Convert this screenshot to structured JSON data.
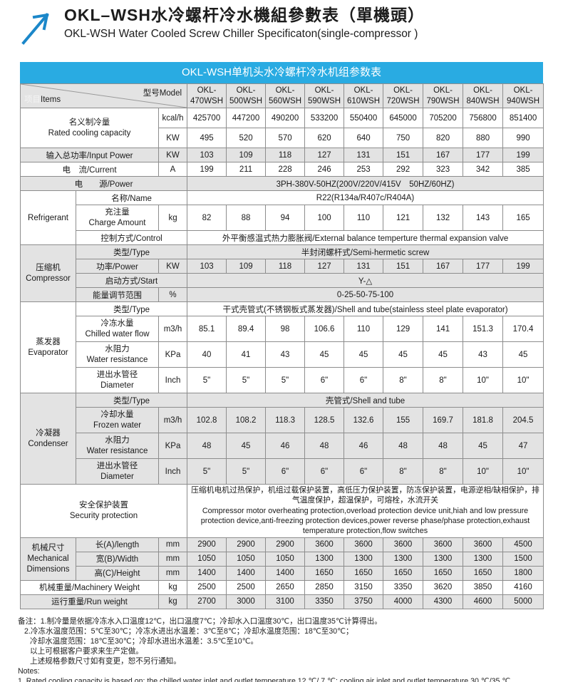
{
  "header": {
    "title_cn": "OKL–WSH水冷螺杆冷水機組參數表（單機頭）",
    "title_en": "OKL-WSH Water Cooled Screw Chiller Specificaton(single-compressor )"
  },
  "banner": {
    "text": "OKL-WSH单机头水冷螺杆冷水机组参数表",
    "bg": "#29abe2"
  },
  "table": {
    "corner": {
      "items_cn": "项目",
      "items_en": "Items",
      "model_label": "型号Model"
    },
    "models": [
      "OKL-470WSH",
      "OKL-500WSH",
      "OKL-560WSH",
      "OKL-590WSH",
      "OKL-610WSH",
      "OKL-720WSH",
      "OKL-790WSH",
      "OKL-840WSH",
      "OKL-940WSH"
    ],
    "rated_cooling": {
      "label_cn": "名义制冷量",
      "label_en": "Rated cooling capacity",
      "kcal": {
        "unit": "kcal/h",
        "values": [
          425700,
          447200,
          490200,
          533200,
          550400,
          645000,
          705200,
          756800,
          851400
        ]
      },
      "kw": {
        "unit": "KW",
        "values": [
          495,
          520,
          570,
          620,
          640,
          750,
          820,
          880,
          990
        ]
      }
    },
    "input_power": {
      "label": "输入总功率/Input Power",
      "unit": "KW",
      "values": [
        103,
        109,
        118,
        127,
        131,
        151,
        167,
        177,
        199
      ]
    },
    "current": {
      "label": "电　流/Current",
      "unit": "A",
      "values": [
        199,
        211,
        228,
        246,
        253,
        292,
        323,
        342,
        385
      ]
    },
    "power_supply": {
      "label": "电　　源/Power",
      "value": "3PH-380V-50HZ(200V/220V/415V　50HZ/60HZ)"
    },
    "refrigerant": {
      "section": "Refrigerant",
      "name": {
        "label": "名称/Name",
        "value": "R22(R134a/R407c/R404A)"
      },
      "charge": {
        "label_cn": "充注量",
        "label_en": "Charge Amount",
        "unit": "kg",
        "values": [
          82,
          88,
          94,
          100,
          110,
          121,
          132,
          143,
          165
        ]
      },
      "control": {
        "label": "控制方式/Control",
        "value": "外平衡感温式热力膨胀阀/External balance temperture thermal expansion valve"
      }
    },
    "compressor": {
      "section_cn": "压缩机",
      "section_en": "Compressor",
      "type": {
        "label": "类型/Type",
        "value": "半封闭螺杆式/Semi-hermetic screw"
      },
      "power": {
        "label": "功率/Power",
        "unit": "KW",
        "values": [
          103,
          109,
          118,
          127,
          131,
          151,
          167,
          177,
          199
        ]
      },
      "start": {
        "label": "启动方式/Start",
        "value": "Y-△"
      },
      "energy": {
        "label": "能量调节范围",
        "unit": "%",
        "value": "0-25-50-75-100"
      }
    },
    "evaporator": {
      "section_cn": "蒸发器",
      "section_en": "Evaporator",
      "type": {
        "label": "类型/Type",
        "value": "干式壳管式(不锈钢板式蒸发器)/Shell and tube(stainless steel plate evaporator)"
      },
      "flow": {
        "label_cn": "冷冻水量",
        "label_en": "Chilled water flow",
        "unit": "m3/h",
        "values": [
          85.1,
          89.4,
          98,
          106.6,
          110,
          129,
          141,
          151.3,
          170.4
        ]
      },
      "resistance": {
        "label_cn": "水阻力",
        "label_en": "Water resistance",
        "unit": "KPa",
        "values": [
          40,
          41,
          43,
          45,
          45,
          45,
          45,
          43,
          45
        ]
      },
      "diameter": {
        "label_cn": "进出水管径",
        "label_en": "Diameter",
        "unit": "Inch",
        "values": [
          "5\"",
          "5\"",
          "5\"",
          "6\"",
          "6\"",
          "8\"",
          "8\"",
          "10\"",
          "10\""
        ]
      }
    },
    "condenser": {
      "section_cn": "冷凝器",
      "section_en": "Condenser",
      "type": {
        "label": "类型/Type",
        "value": "壳管式/Shell and tube"
      },
      "flow": {
        "label_cn": "冷却水量",
        "label_en": "Frozen water",
        "unit": "m3/h",
        "values": [
          102.8,
          108.2,
          118.3,
          128.5,
          132.6,
          155,
          169.7,
          181.8,
          204.5
        ]
      },
      "resistance": {
        "label_cn": "水阻力",
        "label_en": "Water resistance",
        "unit": "KPa",
        "values": [
          48,
          45,
          46,
          48,
          46,
          48,
          48,
          45,
          47
        ]
      },
      "diameter": {
        "label_cn": "进出水管径",
        "label_en": "Diameter",
        "unit": "Inch",
        "values": [
          "5\"",
          "5\"",
          "6\"",
          "6\"",
          "6\"",
          "8\"",
          "8\"",
          "10\"",
          "10\""
        ]
      }
    },
    "security": {
      "label_cn": "安全保护装置",
      "label_en": "Security protection",
      "value_cn": "压缩机电机过热保护，机组过载保护装置，高低压力保护装置，防冻保护装置，电源逆相/缺相保护，排气温度保护，超温保护，可熔栓，水流开关",
      "value_en": "Compressor motor overheating protection,overload protection device unit,hiah and low pressure protection device,anti-freezing protection devices,power reverse phase/phase protection,exhaust temperature protection,flow switches"
    },
    "dimensions": {
      "section_cn": "机械尺寸",
      "section_en": "Mechanical Dimensions",
      "length": {
        "label": "长(A)/length",
        "unit": "mm",
        "values": [
          2900,
          2900,
          2900,
          3600,
          3600,
          3600,
          3600,
          3600,
          4500
        ]
      },
      "width": {
        "label": "宽(B)/Width",
        "unit": "mm",
        "values": [
          1050,
          1050,
          1050,
          1300,
          1300,
          1300,
          1300,
          1300,
          1500
        ]
      },
      "height": {
        "label": "高(C)/Height",
        "unit": "mm",
        "values": [
          1400,
          1400,
          1400,
          1650,
          1650,
          1650,
          1650,
          1650,
          1800
        ]
      }
    },
    "machinery_weight": {
      "label": "机械重量/Machinery Weight",
      "unit": "kg",
      "values": [
        2500,
        2500,
        2650,
        2850,
        3150,
        3350,
        3620,
        3850,
        4160
      ]
    },
    "run_weight": {
      "label": "运行重量/Run weight",
      "unit": "kg",
      "values": [
        2700,
        3000,
        3100,
        3350,
        3750,
        4000,
        4300,
        4600,
        5000
      ]
    }
  },
  "notes": {
    "line1": "备注：1.制冷量是依据冷冻水入口温度12℃，出口温度7℃；冷却水入口温度30℃，出口温度35℃计算得出。",
    "line2": "2.冷冻水温度范围：5℃至30℃；冷冻水进出水温差：3℃至8℃；冷却水温度范围：18℃至30℃；",
    "line3": "冷却水温度范围：18℃至30℃；冷却水进出水温差：3.5℃至10℃。",
    "line4": "以上可根据客户要求来生产定做。",
    "line5": "上述规格参数尺寸如有变更，恕不另行通知。",
    "label_en": "Notes:",
    "line_en": "1. Rated cooling capacity is based on: the chilled water inlet and outlet temperature 12 ℃/ 7 ℃; cooling air inlet and outlet temperature 30 ℃/35 ℃."
  }
}
